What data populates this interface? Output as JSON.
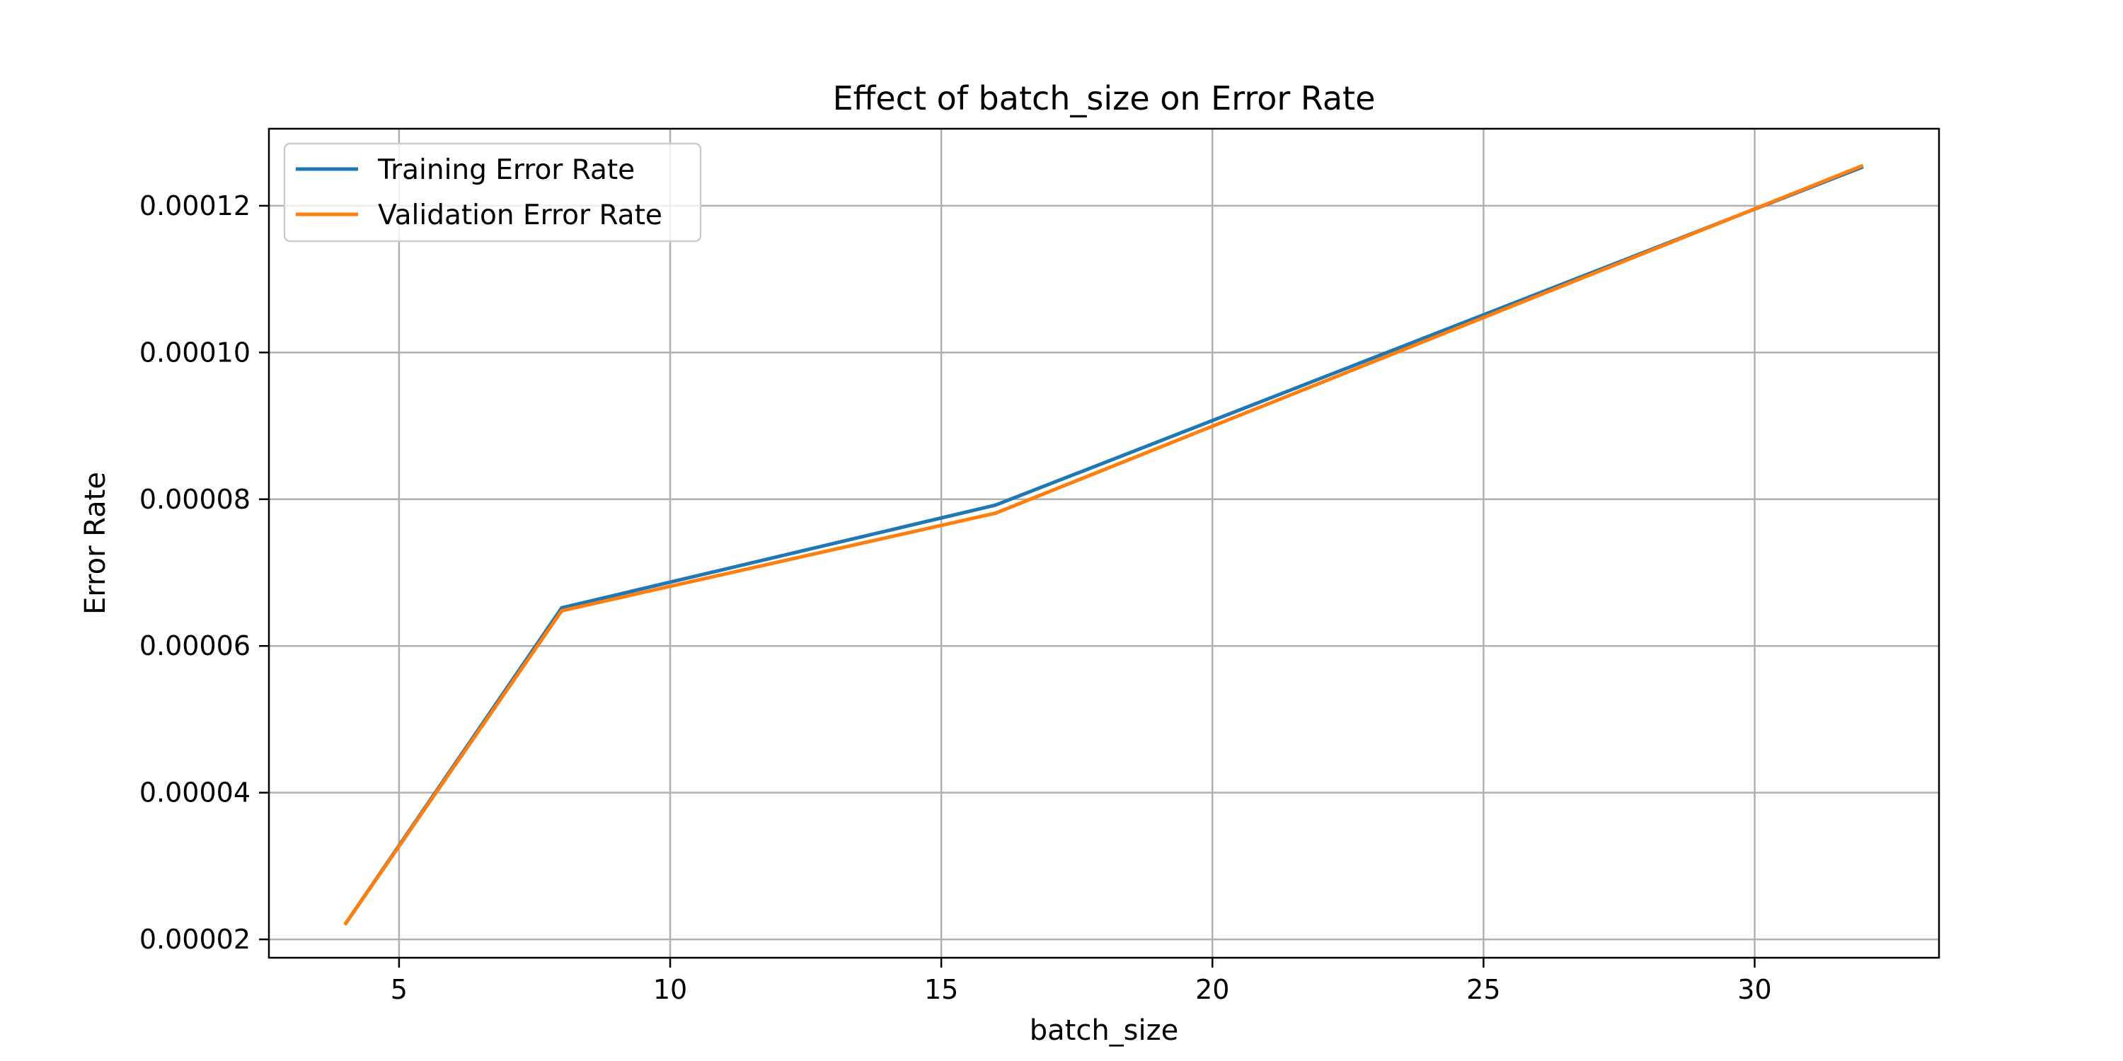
{
  "chart_data": {
    "type": "line",
    "title": "Effect of batch_size on Error Rate",
    "xlabel": "batch_size",
    "ylabel": "Error Rate",
    "x": [
      4,
      8,
      16,
      32
    ],
    "series": [
      {
        "name": "Training Error Rate",
        "color": "#1f77b4",
        "values": [
          2.2e-05,
          6.52e-05,
          7.92e-05,
          0.0001253
        ]
      },
      {
        "name": "Validation Error Rate",
        "color": "#ff7f0e",
        "values": [
          2.2e-05,
          6.48e-05,
          7.81e-05,
          0.0001255
        ]
      }
    ],
    "xlim": [
      2.6,
      33.4
    ],
    "ylim": [
      1.75e-05,
      0.0001305
    ],
    "xticks": [
      5,
      10,
      15,
      20,
      25,
      30
    ],
    "xtick_labels": [
      "5",
      "10",
      "15",
      "20",
      "25",
      "30"
    ],
    "yticks": [
      2e-05,
      4e-05,
      6e-05,
      8e-05,
      0.0001,
      0.00012
    ],
    "ytick_labels": [
      "0.00002",
      "0.00004",
      "0.00006",
      "0.00008",
      "0.00010",
      "0.00012"
    ],
    "grid": true,
    "legend_position": "top-left"
  }
}
